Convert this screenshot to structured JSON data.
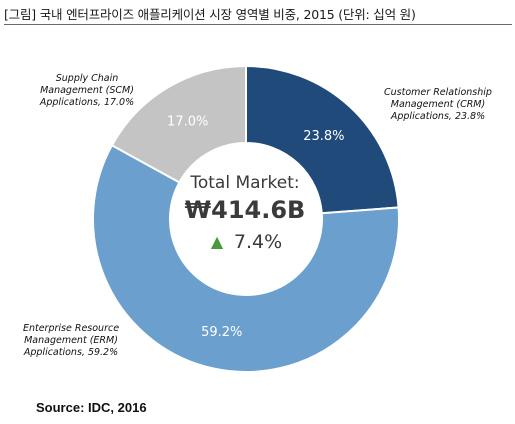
{
  "title": "[그림] 국내 엔터프라이즈 애플리케이션 시장 영역별 비중, 2015 (단위: 십억 원)",
  "source": "Source: IDC, 2016",
  "center": {
    "heading": "Total Market:",
    "total": "₩414.6B",
    "growth_arrow": "▲",
    "growth": "7.4%"
  },
  "chart_data": {
    "type": "pie",
    "title": "[그림] 국내 엔터프라이즈 애플리케이션 시장 영역별 비중, 2015 (단위: 십억 원)",
    "categories": [
      "Customer Relationship Management (CRM) Applications",
      "Enterprise Resource Management (ERM) Applications",
      "Supply Chain Management (SCM) Applications"
    ],
    "values": [
      23.8,
      59.2,
      17.0
    ],
    "unit": "%",
    "colors": [
      "#1f4a7a",
      "#6a9fce",
      "#c4c4c4"
    ],
    "data_labels": [
      "23.8%",
      "59.2%",
      "17.0%"
    ],
    "callouts": [
      [
        "Customer Relationship",
        "Management (CRM)",
        "Applications, 23.8%"
      ],
      [
        "Enterprise Resource",
        "Management (ERM)",
        "Applications, 59.2%"
      ],
      [
        "Supply Chain",
        "Management (SCM)",
        "Applications, 17.0%"
      ]
    ],
    "donut": true,
    "legend": "none"
  }
}
